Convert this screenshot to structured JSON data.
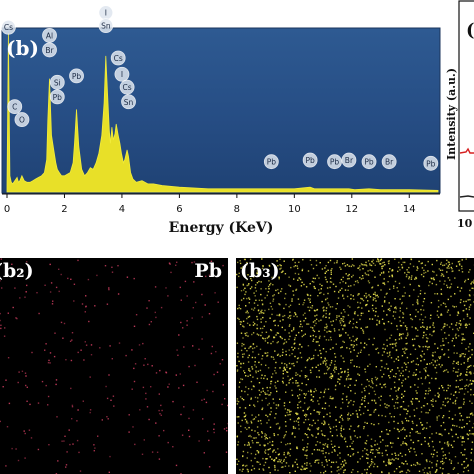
{
  "chart_data": {
    "type": "line",
    "panel_label": "(b)",
    "xlabel": "Energy (KeV)",
    "ylabel": "",
    "xlim": [
      0,
      15
    ],
    "x_ticks": [
      "0",
      "2",
      "4",
      "6",
      "8",
      "10",
      "12",
      "14"
    ],
    "series": [
      {
        "x": [
          0.0,
          0.05,
          0.1,
          0.15,
          0.2,
          0.27,
          0.35,
          0.4,
          0.45,
          0.52,
          0.6,
          0.7,
          0.8,
          0.9,
          1.0,
          1.1,
          1.2,
          1.3,
          1.38,
          1.42,
          1.48,
          1.55,
          1.62,
          1.7,
          1.75,
          1.82,
          1.9,
          2.0,
          2.1,
          2.2,
          2.3,
          2.35,
          2.42,
          2.5,
          2.6,
          2.7,
          2.8,
          2.9,
          3.0,
          3.1,
          3.2,
          3.3,
          3.38,
          3.44,
          3.5,
          3.56,
          3.6,
          3.65,
          3.7,
          3.76,
          3.8,
          3.87,
          3.93,
          3.98,
          4.05,
          4.1,
          4.18,
          4.23,
          4.3,
          4.38,
          4.5,
          4.7,
          4.9,
          5.1,
          5.4,
          6.0,
          7.0,
          8.0,
          9.0,
          10.0,
          10.55,
          10.7,
          11.0,
          11.9,
          12.1,
          12.6,
          13.0,
          14.0,
          15.0
        ],
        "y": [
          0.04,
          0.98,
          0.1,
          0.06,
          0.05,
          0.07,
          0.09,
          0.06,
          0.07,
          0.1,
          0.07,
          0.06,
          0.06,
          0.07,
          0.08,
          0.09,
          0.1,
          0.12,
          0.2,
          0.44,
          0.7,
          0.35,
          0.27,
          0.18,
          0.14,
          0.12,
          0.1,
          0.1,
          0.11,
          0.12,
          0.18,
          0.3,
          0.51,
          0.28,
          0.14,
          0.1,
          0.12,
          0.15,
          0.14,
          0.18,
          0.24,
          0.35,
          0.55,
          0.84,
          0.6,
          0.38,
          0.3,
          0.4,
          0.32,
          0.36,
          0.42,
          0.35,
          0.3,
          0.24,
          0.18,
          0.2,
          0.26,
          0.22,
          0.12,
          0.08,
          0.06,
          0.07,
          0.05,
          0.05,
          0.04,
          0.03,
          0.02,
          0.02,
          0.02,
          0.02,
          0.03,
          0.02,
          0.02,
          0.02,
          0.015,
          0.02,
          0.015,
          0.015,
          0.01
        ]
      }
    ],
    "annotations": [
      {
        "text": "Cs",
        "x": 0.05,
        "y": 0.98
      },
      {
        "text": "C",
        "x": 0.27,
        "y": 0.49
      },
      {
        "text": "O",
        "x": 0.52,
        "y": 0.41
      },
      {
        "text": "Al",
        "x": 1.48,
        "y": 0.93
      },
      {
        "text": "Br",
        "x": 1.48,
        "y": 0.84
      },
      {
        "text": "Si",
        "x": 1.75,
        "y": 0.64
      },
      {
        "text": "Pb",
        "x": 1.75,
        "y": 0.55
      },
      {
        "text": "Pb",
        "x": 2.42,
        "y": 0.68
      },
      {
        "text": "I",
        "x": 3.44,
        "y": 1.07
      },
      {
        "text": "Sn",
        "x": 3.44,
        "y": 0.99
      },
      {
        "text": "Cs",
        "x": 3.87,
        "y": 0.79
      },
      {
        "text": "I",
        "x": 4.0,
        "y": 0.69
      },
      {
        "text": "Cs",
        "x": 4.18,
        "y": 0.61
      },
      {
        "text": "Sn",
        "x": 4.23,
        "y": 0.52
      },
      {
        "text": "Pb",
        "x": 9.2,
        "y": 0.15
      },
      {
        "text": "Pb",
        "x": 10.55,
        "y": 0.16
      },
      {
        "text": "Pb",
        "x": 11.4,
        "y": 0.15
      },
      {
        "text": "Br",
        "x": 11.9,
        "y": 0.16
      },
      {
        "text": "Pb",
        "x": 12.6,
        "y": 0.15
      },
      {
        "text": "Br",
        "x": 13.3,
        "y": 0.15
      },
      {
        "text": "Pb",
        "x": 14.75,
        "y": 0.14
      }
    ],
    "inset": {
      "label_top": "(",
      "ylabel": "Intensity (a.u.)",
      "tick_bottom": "10"
    }
  },
  "maps": [
    {
      "label": "(b₂)",
      "element": "Pb",
      "dot_color": "#c23a5a",
      "density": "sparse"
    },
    {
      "label": "(b₃)",
      "element": "",
      "dot_color": "#e3dd4c",
      "density": "dense"
    }
  ]
}
